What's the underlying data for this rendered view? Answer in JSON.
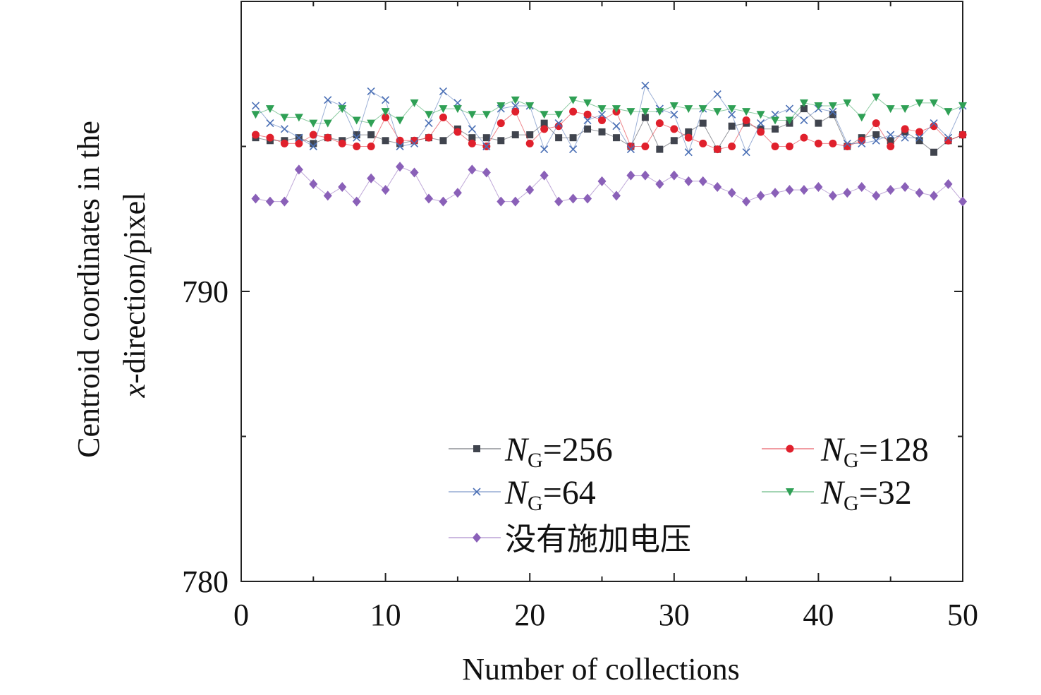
{
  "chart_data": {
    "type": "line",
    "title": "",
    "xlabel": "Number of collections",
    "ylabel_line1": "Centroid coordinates in the",
    "ylabel_line2_var": "x",
    "ylabel_line2_rest": "-direction/pixel",
    "xlim": [
      0,
      50
    ],
    "ylim": [
      780,
      800
    ],
    "xticks": [
      0,
      10,
      20,
      30,
      40,
      50
    ],
    "xtick_labels": [
      "0",
      "10",
      "20",
      "30",
      "40",
      "50"
    ],
    "yticks": [
      780,
      790
    ],
    "ytick_labels": [
      "780",
      "790"
    ],
    "x_minor_step": 5,
    "y_minor_step": 5,
    "grid": false,
    "legend_position": "lower-center",
    "x": [
      1,
      2,
      3,
      4,
      5,
      6,
      7,
      8,
      9,
      10,
      11,
      12,
      13,
      14,
      15,
      16,
      17,
      18,
      19,
      20,
      21,
      22,
      23,
      24,
      25,
      26,
      27,
      28,
      29,
      30,
      31,
      32,
      33,
      34,
      35,
      36,
      37,
      38,
      39,
      40,
      41,
      42,
      43,
      44,
      45,
      46,
      47,
      48,
      49,
      50
    ],
    "series": [
      {
        "legend_var": "N",
        "legend_sub": "G",
        "legend_value": "=256",
        "name": "NG=256",
        "color": "#40444e",
        "marker": "square",
        "values": [
          795.3,
          795.2,
          795.2,
          795.3,
          795.1,
          795.3,
          795.2,
          795.4,
          795.4,
          795.2,
          795.1,
          795.2,
          795.3,
          795.2,
          795.6,
          795.3,
          795.3,
          795.2,
          795.4,
          795.4,
          795.8,
          795.3,
          795.3,
          795.6,
          795.5,
          795.3,
          795.0,
          796.0,
          794.9,
          795.2,
          795.5,
          795.8,
          794.9,
          795.7,
          795.8,
          795.6,
          795.6,
          795.8,
          796.3,
          795.8,
          796.1,
          795.0,
          795.3,
          795.4,
          795.2,
          795.5,
          795.2,
          794.8,
          795.2,
          795.4
        ]
      },
      {
        "legend_var": "N",
        "legend_sub": "G",
        "legend_value": "=128",
        "name": "NG=128",
        "color": "#e0202c",
        "marker": "circle",
        "values": [
          795.4,
          795.3,
          795.1,
          795.1,
          795.4,
          795.3,
          795.1,
          795.0,
          795.0,
          796.0,
          795.2,
          795.2,
          795.3,
          796.0,
          795.5,
          795.1,
          795.0,
          795.8,
          796.2,
          795.1,
          795.6,
          795.7,
          796.2,
          796.1,
          795.9,
          796.2,
          795.0,
          795.0,
          795.8,
          795.6,
          795.3,
          795.1,
          794.9,
          795.0,
          795.9,
          795.5,
          795.0,
          795.0,
          795.3,
          795.1,
          795.1,
          795.0,
          795.2,
          795.8,
          795.0,
          795.6,
          795.5,
          795.7,
          795.2,
          795.4
        ]
      },
      {
        "legend_var": "N",
        "legend_sub": "G",
        "legend_value": "=64",
        "name": "NG=64",
        "color": "#4a6fb5",
        "marker": "cross",
        "values": [
          796.4,
          795.8,
          795.6,
          795.3,
          795.0,
          796.6,
          796.4,
          795.3,
          796.9,
          796.6,
          795.0,
          795.1,
          795.8,
          796.9,
          796.5,
          795.6,
          795.0,
          796.3,
          796.4,
          796.4,
          794.9,
          795.8,
          794.9,
          795.9,
          796.1,
          795.7,
          794.9,
          797.1,
          796.3,
          796.1,
          794.8,
          796.3,
          796.8,
          796.1,
          794.8,
          795.8,
          796.1,
          796.3,
          795.9,
          796.3,
          796.2,
          795.1,
          795.1,
          795.2,
          795.4,
          795.3,
          795.3,
          795.8,
          795.3,
          796.4
        ]
      },
      {
        "legend_var": "N",
        "legend_sub": "G",
        "legend_value": "=32",
        "name": "NG=32",
        "color": "#2fa055",
        "marker": "triangle-down",
        "values": [
          796.1,
          796.3,
          796.0,
          796.0,
          795.8,
          795.8,
          796.3,
          795.9,
          795.8,
          796.2,
          795.9,
          796.5,
          796.1,
          796.3,
          796.3,
          796.1,
          796.1,
          796.4,
          796.6,
          796.4,
          796.1,
          796.1,
          796.6,
          796.5,
          796.3,
          796.3,
          796.2,
          796.2,
          796.2,
          796.4,
          796.3,
          796.3,
          796.2,
          796.3,
          796.2,
          796.1,
          795.9,
          795.9,
          796.5,
          796.4,
          796.4,
          796.5,
          796.0,
          796.7,
          796.3,
          796.3,
          796.5,
          796.5,
          796.2,
          796.4
        ]
      },
      {
        "legend_text": "没有施加电压",
        "name": "没有施加电压",
        "color": "#8a60b8",
        "marker": "diamond",
        "values": [
          793.2,
          793.1,
          793.1,
          794.2,
          793.7,
          793.3,
          793.6,
          793.1,
          793.9,
          793.5,
          794.3,
          794.1,
          793.2,
          793.1,
          793.4,
          794.2,
          794.1,
          793.1,
          793.1,
          793.5,
          794.0,
          793.1,
          793.2,
          793.2,
          793.8,
          793.3,
          794.0,
          794.0,
          793.7,
          794.0,
          793.8,
          793.8,
          793.6,
          793.4,
          793.1,
          793.3,
          793.4,
          793.5,
          793.5,
          793.6,
          793.3,
          793.4,
          793.6,
          793.3,
          793.5,
          793.6,
          793.4,
          793.3,
          793.7,
          793.1
        ]
      }
    ]
  }
}
